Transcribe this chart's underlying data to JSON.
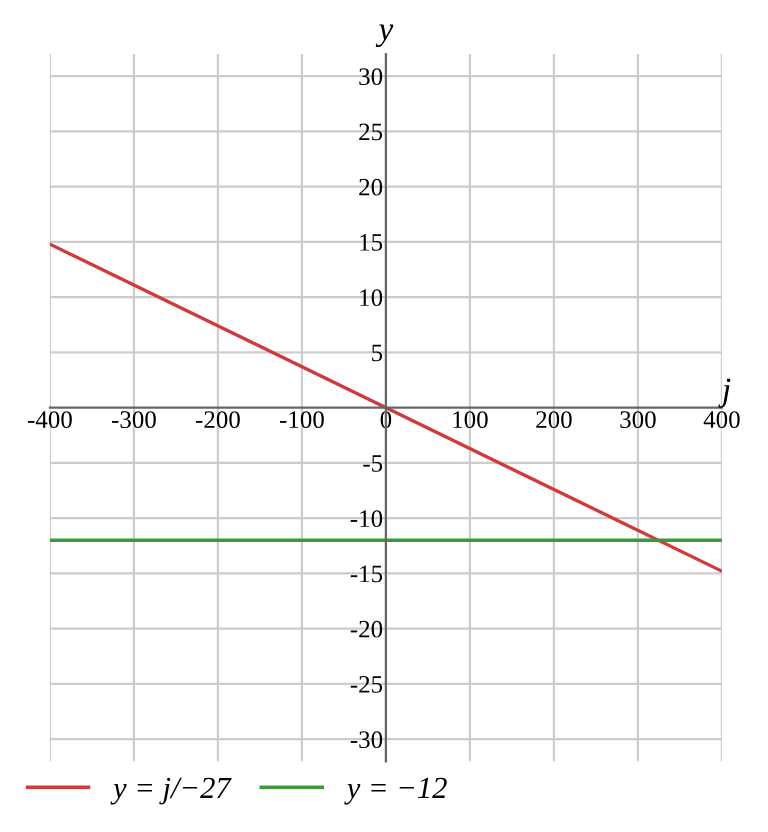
{
  "chart_data": {
    "type": "line",
    "xlabel": "j",
    "ylabel": "y",
    "xlim": [
      -400,
      400
    ],
    "ylim": [
      -32,
      32
    ],
    "xticks": [
      -400,
      -300,
      -200,
      -100,
      0,
      100,
      200,
      300,
      400
    ],
    "yticks": [
      -30,
      -25,
      -20,
      -15,
      -10,
      -5,
      5,
      10,
      15,
      20,
      25,
      30
    ],
    "x": [
      -400,
      400
    ],
    "grid": true,
    "legend": "bottom left",
    "marker": "none",
    "line_style": "solid",
    "series": [
      {
        "name": "y = j/−27",
        "color": "#d03a3a",
        "values": [
          14.8,
          -14.8
        ]
      },
      {
        "name": "y = −12",
        "color": "#3a9a3a",
        "values": [
          -12,
          -12
        ]
      }
    ]
  }
}
